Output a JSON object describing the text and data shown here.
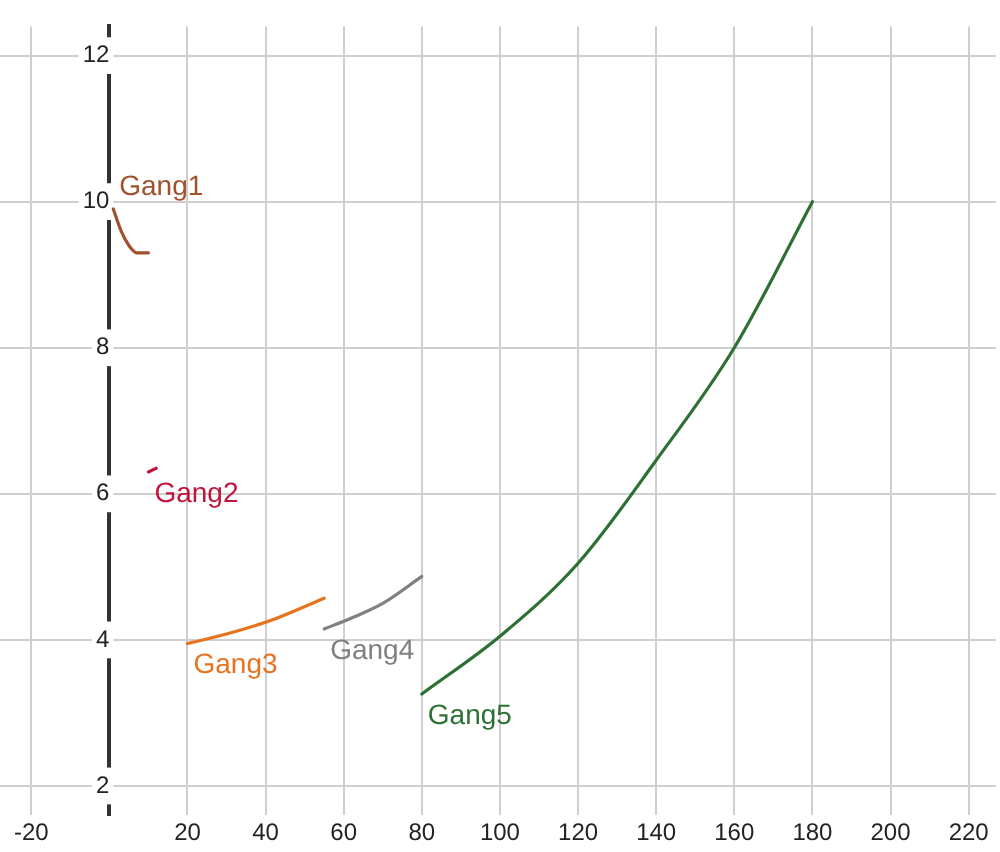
{
  "chart_data": {
    "type": "line",
    "xlim": [
      -28,
      227
    ],
    "ylim": [
      1.6,
      12.4
    ],
    "xticks": [
      -20,
      20,
      40,
      60,
      80,
      100,
      120,
      140,
      160,
      180,
      200,
      220
    ],
    "yticks": [
      2,
      4,
      6,
      8,
      10,
      12
    ],
    "grid": true,
    "legend": false,
    "marker": "none",
    "line_style": "solid",
    "series": [
      {
        "name": "Gang1",
        "color": "#a0522d",
        "x": [
          1,
          3,
          5,
          7,
          10
        ],
        "values": [
          9.9,
          9.6,
          9.4,
          9.3,
          9.3
        ]
      },
      {
        "name": "Gang2",
        "color": "#c0143c",
        "x": [
          10,
          12
        ],
        "values": [
          6.3,
          6.35
        ]
      },
      {
        "name": "Gang3",
        "color": "#e8731f",
        "x": [
          20,
          30,
          42,
          55
        ],
        "values": [
          3.95,
          4.08,
          4.28,
          4.57
        ]
      },
      {
        "name": "Gang4",
        "color": "#808080",
        "x": [
          55,
          62,
          70,
          80
        ],
        "values": [
          4.15,
          4.3,
          4.5,
          4.87
        ]
      },
      {
        "name": "Gang5",
        "color": "#2d7034",
        "x": [
          80,
          100,
          120,
          140,
          160,
          180
        ],
        "values": [
          3.26,
          4.05,
          5.05,
          6.46,
          8.0,
          10
        ]
      }
    ]
  }
}
